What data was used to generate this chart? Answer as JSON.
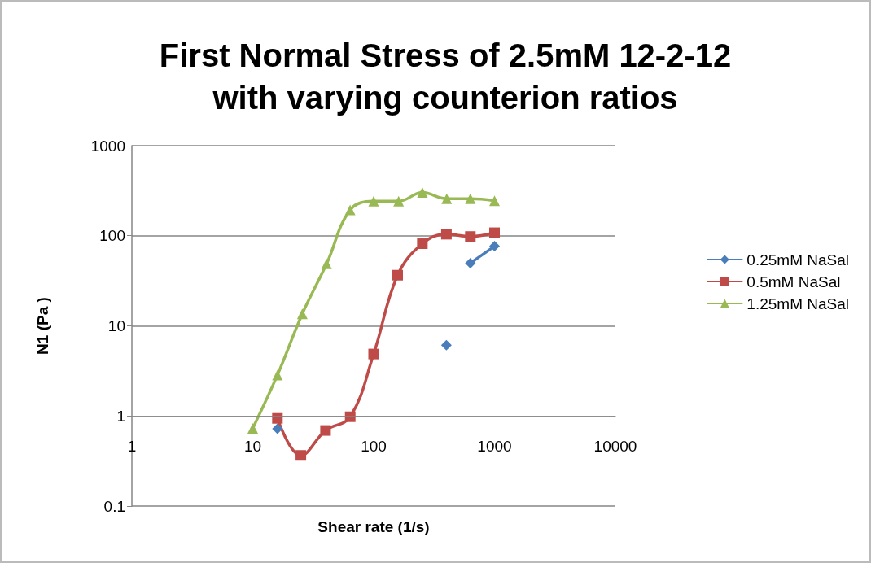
{
  "chart_data": {
    "type": "line",
    "title": "First Normal Stress of 2.5mM 12-2-12\nwith varying counterion ratios",
    "xlabel": "Shear rate (1/s)",
    "ylabel": "N1 (Pa )",
    "log": "xy",
    "xlim": [
      1,
      10000
    ],
    "xticks": [
      1,
      10,
      100,
      1000,
      10000
    ],
    "ylim": [
      0.1,
      1000
    ],
    "yticks": [
      0.1,
      1,
      10,
      100,
      1000
    ],
    "grid": "y",
    "legend": "right",
    "series": [
      {
        "name": "0.25mM NaSal",
        "color": "#4a7ebb",
        "marker": "diamond",
        "x": [
          16,
          25,
          400,
          500,
          631,
          1000
        ],
        "values": [
          0.72,
          null,
          6.1,
          null,
          49.7,
          76.6
        ]
      },
      {
        "name": "0.5mM NaSal",
        "color": "#be4b48",
        "marker": "square",
        "x": [
          16,
          25,
          40,
          64,
          100,
          158,
          253,
          400,
          631,
          1000
        ],
        "values": [
          0.94,
          0.365,
          0.69,
          0.98,
          4.87,
          36.5,
          81.6,
          104,
          98,
          108
        ]
      },
      {
        "name": "1.25mM NaSal",
        "color": "#98b954",
        "marker": "triangle",
        "x": [
          10,
          16,
          25.7,
          40.8,
          63.9,
          100,
          161,
          253,
          402,
          631,
          1000
        ],
        "values": [
          0.73,
          2.85,
          13.6,
          48.7,
          193,
          242,
          242,
          302,
          257,
          257,
          245
        ]
      }
    ]
  }
}
